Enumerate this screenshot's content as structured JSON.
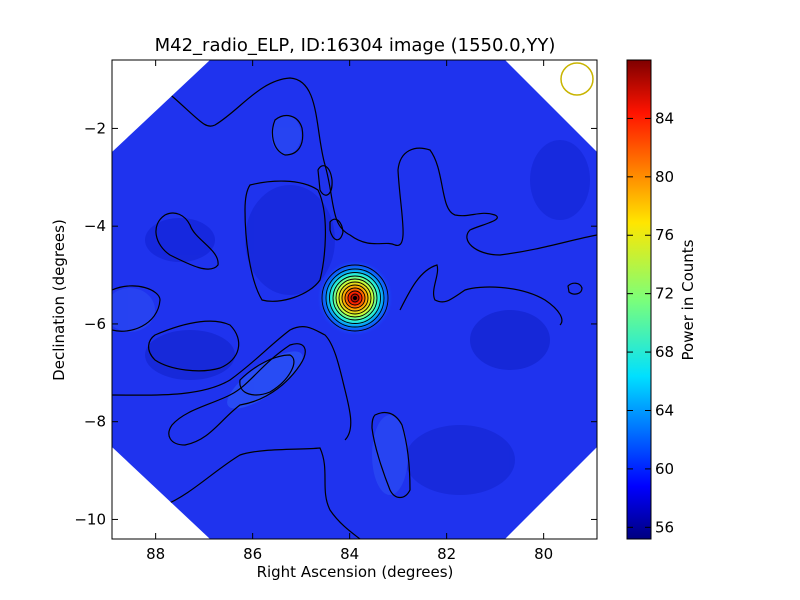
{
  "chart_data": {
    "type": "heatmap",
    "title": "M42_radio_ELP, ID:16304 image (1550.0,YY)",
    "xlabel": "Right Ascension (degrees)",
    "ylabel": "Declination (degrees)",
    "xlim": [
      88.9,
      78.9
    ],
    "ylim": [
      -10.4,
      -0.6
    ],
    "x_ticks": [
      88,
      86,
      84,
      82,
      80
    ],
    "y_ticks": [
      -2,
      -4,
      -6,
      -8,
      -10
    ],
    "colorbar": {
      "label": "Power in Counts",
      "range": [
        55.2,
        88.0
      ],
      "ticks": [
        56,
        60,
        64,
        68,
        72,
        76,
        80,
        84
      ],
      "colormap": "jet"
    },
    "background_level": 58.5,
    "sources": [
      {
        "ra": 83.7,
        "dec": -5.4,
        "peak": 88,
        "note": "bright compact source"
      }
    ],
    "beam_marker": {
      "ra": 79.1,
      "dec": -0.85,
      "color": "#c8b400"
    },
    "field_shape": "octagon",
    "contours": "black"
  }
}
